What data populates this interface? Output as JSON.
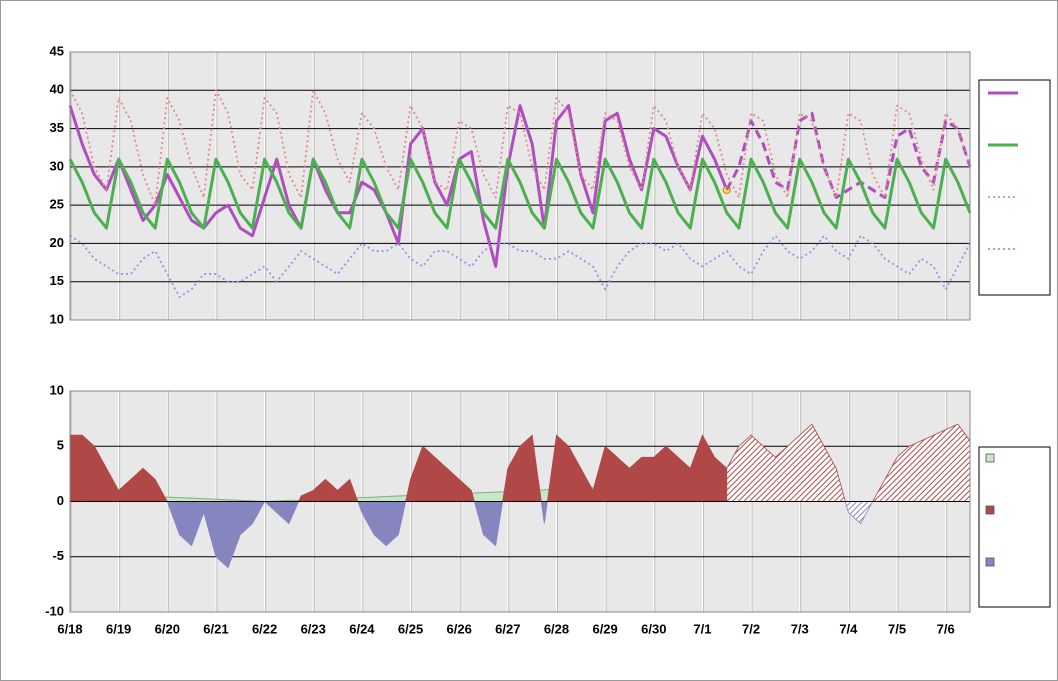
{
  "chart_data": [
    {
      "type": "line",
      "ylim": [
        10,
        45
      ],
      "yticks": [
        10,
        15,
        20,
        25,
        30,
        35,
        40,
        45
      ],
      "grid": true,
      "background": "#e8e8e8",
      "series": [
        {
          "color": "#b04ec0",
          "style": "solid",
          "width": 3,
          "legend": true,
          "end_marker": "#ffe44d",
          "values": [
            38,
            33,
            29,
            27,
            31,
            27,
            23,
            25,
            29,
            26,
            23,
            22,
            24,
            25,
            22,
            21,
            26,
            31,
            25,
            22,
            31,
            27,
            24,
            24,
            28,
            27,
            24,
            20,
            33,
            35,
            28,
            25,
            31,
            32,
            23,
            17,
            30,
            38,
            33,
            22,
            36,
            38,
            29,
            24,
            36,
            37,
            31,
            27,
            35,
            34,
            30,
            27,
            34,
            31,
            27,
            null,
            null,
            null,
            null,
            null,
            null,
            null,
            null,
            null,
            null,
            null,
            null,
            null,
            null,
            null,
            null,
            null,
            null,
            null,
            null
          ]
        },
        {
          "color": "#b04ec0",
          "style": "dashed",
          "width": 3,
          "legend": false,
          "values": [
            null,
            null,
            null,
            null,
            null,
            null,
            null,
            null,
            null,
            null,
            null,
            null,
            null,
            null,
            null,
            null,
            null,
            null,
            null,
            null,
            null,
            null,
            null,
            null,
            null,
            null,
            null,
            null,
            null,
            null,
            null,
            null,
            null,
            null,
            null,
            null,
            null,
            null,
            null,
            null,
            null,
            null,
            null,
            null,
            null,
            null,
            null,
            null,
            null,
            null,
            null,
            null,
            null,
            null,
            27,
            30,
            36,
            33,
            28,
            27,
            36,
            37,
            30,
            26,
            27,
            28,
            27,
            26,
            34,
            35,
            30,
            28,
            36,
            35,
            30
          ]
        },
        {
          "color": "#4caf50",
          "style": "solid",
          "width": 3,
          "legend": true,
          "values": [
            31,
            28,
            24,
            22,
            31,
            28,
            24,
            22,
            31,
            28,
            24,
            22,
            31,
            28,
            24,
            22,
            31,
            28,
            24,
            22,
            31,
            28,
            24,
            22,
            31,
            28,
            24,
            22,
            31,
            28,
            24,
            22,
            31,
            28,
            24,
            22,
            31,
            28,
            24,
            22,
            31,
            28,
            24,
            22,
            31,
            28,
            24,
            22,
            31,
            28,
            24,
            22,
            31,
            28,
            24,
            22,
            31,
            28,
            24,
            22,
            31,
            28,
            24,
            22,
            31,
            28,
            24,
            22,
            31,
            28,
            24,
            22,
            31,
            28,
            24
          ]
        },
        {
          "color": "#e08a8a",
          "style": "dotted",
          "width": 1.8,
          "legend": true,
          "values": [
            40,
            37,
            30,
            27,
            39,
            36,
            29,
            25,
            39,
            36,
            30,
            26,
            40,
            37,
            29,
            27,
            39,
            37,
            29,
            26,
            40,
            37,
            31,
            28,
            37,
            35,
            30,
            27,
            38,
            35,
            28,
            27,
            36,
            35,
            29,
            26,
            38,
            37,
            30,
            27,
            39,
            37,
            29,
            27,
            37,
            36,
            30,
            27,
            38,
            36,
            30,
            27,
            37,
            35,
            29,
            26,
            37,
            36,
            29,
            26,
            37,
            36,
            30,
            26,
            37,
            36,
            29,
            26,
            38,
            37,
            31,
            27,
            37,
            35,
            30
          ]
        },
        {
          "color": "#9a8fe8",
          "style": "dotted",
          "width": 1.8,
          "legend": true,
          "values": [
            21,
            20,
            18,
            17,
            16,
            16,
            18,
            19,
            16,
            13,
            14,
            16,
            16,
            15,
            15,
            16,
            17,
            15,
            17,
            19,
            18,
            17,
            16,
            18,
            20,
            19,
            19,
            20,
            18,
            17,
            19,
            19,
            18,
            17,
            19,
            20,
            20,
            19,
            19,
            18,
            18,
            19,
            18,
            17,
            14,
            17,
            19,
            20,
            20,
            19,
            20,
            18,
            17,
            18,
            19,
            17,
            16,
            19,
            21,
            19,
            18,
            19,
            21,
            19,
            18,
            21,
            20,
            18,
            17,
            16,
            18,
            17,
            14,
            17,
            20
          ]
        }
      ]
    },
    {
      "type": "area",
      "ylim": [
        -10,
        10
      ],
      "yticks": [
        -10,
        -5,
        0,
        5,
        10
      ],
      "grid": true,
      "background": "#e8e8e8",
      "categories": [
        "6/18",
        null,
        null,
        null,
        "6/19",
        null,
        null,
        null,
        "6/20",
        null,
        null,
        null,
        "6/21",
        null,
        null,
        null,
        "6/22",
        null,
        null,
        null,
        "6/23",
        null,
        null,
        null,
        "6/24",
        null,
        null,
        null,
        "6/25",
        null,
        null,
        null,
        "6/26",
        null,
        null,
        null,
        "6/27",
        null,
        null,
        null,
        "6/28",
        null,
        null,
        null,
        "6/29",
        null,
        null,
        null,
        "6/30",
        null,
        null,
        null,
        "7/1",
        null,
        null,
        null,
        "7/2",
        null,
        null,
        null,
        "7/3",
        null,
        null,
        null,
        "7/4",
        null,
        null,
        null,
        "7/5",
        null,
        null,
        null,
        "7/6",
        null,
        null
      ],
      "series": [
        {
          "color": "#c8e6c8",
          "stroke": "#7fb07f",
          "legend": true,
          "values": [
            0.8,
            0.75,
            0.7,
            0.65,
            0.6,
            0.55,
            0.5,
            0.45,
            0.4,
            0.35,
            0.3,
            0.25,
            0.2,
            0.15,
            0.1,
            0.05,
            0,
            0.05,
            0.1,
            0.1,
            0.15,
            0.2,
            0.25,
            0.3,
            0.35,
            0.4,
            0.45,
            0.5,
            0.55,
            0.6,
            0.65,
            0.7,
            0.7,
            0.75,
            0.8,
            0.85,
            0.9,
            0.95,
            1.0,
            1.05,
            1.1,
            1.15,
            1.2,
            1.25,
            1.25,
            1.3,
            1.35,
            1.4,
            1.45,
            1.5,
            1.55,
            1.6,
            1.6,
            1.65,
            1.7,
            null,
            null,
            null,
            null,
            null,
            null,
            null,
            null,
            null,
            null,
            null,
            null,
            null,
            null,
            null,
            null,
            null,
            null,
            null,
            null
          ]
        },
        {
          "color": "#b04848",
          "neg_color": "#8585c0",
          "legend": true,
          "values": [
            6,
            6,
            5,
            3,
            1,
            2,
            3,
            2,
            0,
            -3,
            -4,
            -1,
            -5,
            -6,
            -3,
            -2,
            0,
            -1,
            -2,
            0.5,
            1,
            2,
            1,
            2,
            -1,
            -3,
            -4,
            -3,
            2,
            5,
            4,
            3,
            2,
            1,
            -3,
            -4,
            3,
            5,
            6,
            -2,
            6,
            5,
            3,
            1,
            5,
            4,
            3,
            4,
            4,
            5,
            4,
            3,
            6,
            4,
            3,
            null,
            null,
            null,
            null,
            null,
            null,
            null,
            null,
            null,
            null,
            null,
            null,
            null,
            null,
            null,
            null,
            null,
            null,
            null,
            null
          ]
        },
        {
          "color": "#b04848",
          "neg_color": "#8585c0",
          "pattern": "hatch",
          "legend": false,
          "values": [
            null,
            null,
            null,
            null,
            null,
            null,
            null,
            null,
            null,
            null,
            null,
            null,
            null,
            null,
            null,
            null,
            null,
            null,
            null,
            null,
            null,
            null,
            null,
            null,
            null,
            null,
            null,
            null,
            null,
            null,
            null,
            null,
            null,
            null,
            null,
            null,
            null,
            null,
            null,
            null,
            null,
            null,
            null,
            null,
            null,
            null,
            null,
            null,
            null,
            null,
            null,
            null,
            null,
            null,
            3,
            5,
            6,
            5,
            4,
            5,
            6,
            7,
            5,
            3,
            -1,
            -2,
            0,
            2,
            4,
            5,
            5.5,
            6,
            6.5,
            7,
            5.5
          ]
        }
      ]
    }
  ]
}
